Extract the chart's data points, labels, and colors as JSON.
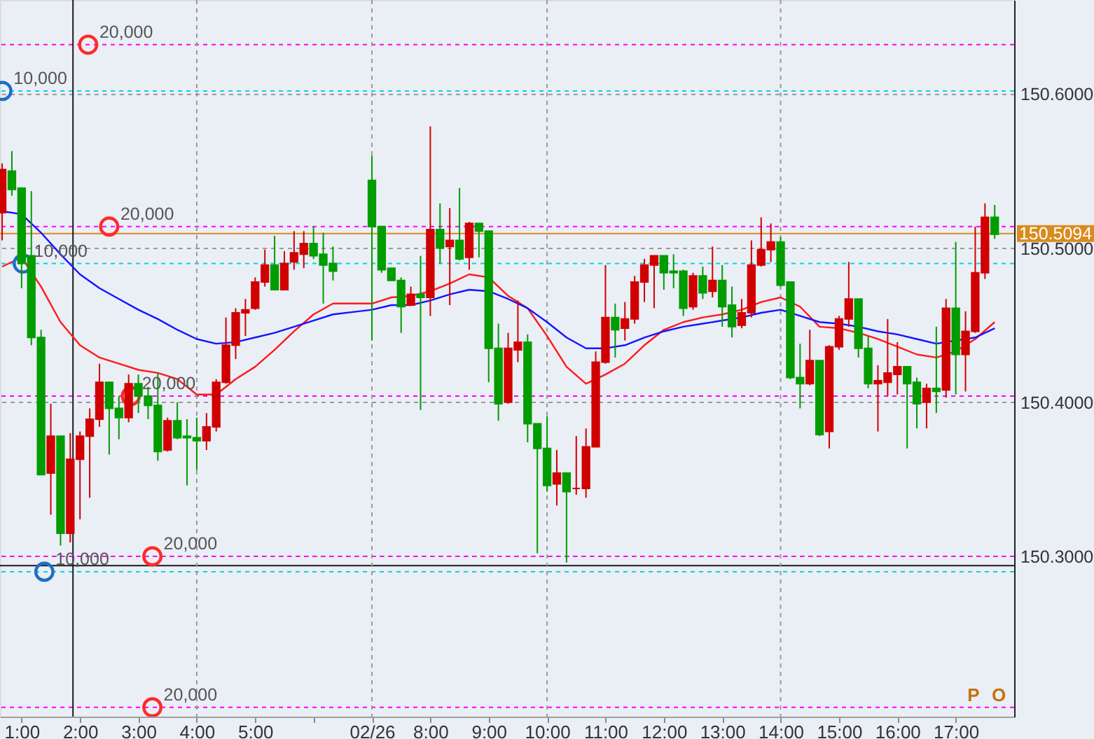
{
  "chart_data": {
    "type": "candlestick",
    "x": [
      0.6667,
      0.8333,
      1,
      1.1667,
      1.3333,
      1.5,
      1.6667,
      1.8333,
      2,
      2.1667,
      2.3333,
      2.5,
      2.6667,
      2.8333,
      3,
      3.1667,
      3.3333,
      3.5,
      3.6667,
      3.8333,
      4,
      4.1667,
      4.3333,
      4.5,
      4.6667,
      4.8333,
      5,
      5.1667,
      5.3333,
      5.5,
      5.6667,
      5.8333,
      6,
      6.1667,
      6.3333,
      7,
      7.1667,
      7.3333,
      7.5,
      7.6667,
      7.8333,
      8,
      8.1667,
      8.3333,
      8.5,
      8.6667,
      8.8333,
      9,
      9.1667,
      9.3333,
      9.5,
      9.6667,
      9.8333,
      10,
      10.1667,
      10.3333,
      10.5,
      10.6667,
      10.8333,
      11,
      11.1667,
      11.3333,
      11.5,
      11.6667,
      11.8333,
      12,
      12.1667,
      12.3333,
      12.5,
      12.6667,
      12.8333,
      13,
      13.1667,
      13.3333,
      13.5,
      13.6667,
      13.8333,
      14,
      14.1667,
      14.3333,
      14.5,
      14.6667,
      14.8333,
      15,
      15.1667,
      15.3333,
      15.5,
      15.6667,
      15.8333,
      16,
      16.1667,
      16.3333,
      16.5,
      16.6667,
      16.8333,
      17,
      17.1667,
      17.3333,
      17.5,
      17.6667
    ],
    "ohlc": [
      [
        150.523,
        150.555,
        150.505,
        150.551
      ],
      [
        150.55,
        150.563,
        150.534,
        150.538
      ],
      [
        150.539,
        150.539,
        150.474,
        150.49
      ],
      [
        150.495,
        150.537,
        150.437,
        150.442
      ],
      [
        150.442,
        150.447,
        150.353,
        150.353
      ],
      [
        150.354,
        150.399,
        150.327,
        150.378
      ],
      [
        150.378,
        150.378,
        150.307,
        150.315
      ],
      [
        150.315,
        150.38,
        150.309,
        150.363
      ],
      [
        150.363,
        150.381,
        150.324,
        150.378
      ],
      [
        150.378,
        150.396,
        150.338,
        150.389
      ],
      [
        150.389,
        150.425,
        150.384,
        150.413
      ],
      [
        150.413,
        150.413,
        150.366,
        150.396
      ],
      [
        150.396,
        150.404,
        150.376,
        150.39
      ],
      [
        150.39,
        150.418,
        150.387,
        150.412
      ],
      [
        150.412,
        150.418,
        150.393,
        150.404
      ],
      [
        150.404,
        150.41,
        150.389,
        150.398
      ],
      [
        150.398,
        150.419,
        150.362,
        150.368
      ],
      [
        150.369,
        150.39,
        150.368,
        150.388
      ],
      [
        150.388,
        150.4,
        150.376,
        150.377
      ],
      [
        150.378,
        150.389,
        150.346,
        150.377
      ],
      [
        150.377,
        150.39,
        150.356,
        150.375
      ],
      [
        150.375,
        150.393,
        150.369,
        150.384
      ],
      [
        150.384,
        150.415,
        150.381,
        150.413
      ],
      [
        150.413,
        150.455,
        150.412,
        150.437
      ],
      [
        150.437,
        150.461,
        150.428,
        150.458
      ],
      [
        150.458,
        150.467,
        150.443,
        150.46
      ],
      [
        150.461,
        150.481,
        150.46,
        150.478
      ],
      [
        150.478,
        150.499,
        150.475,
        150.489
      ],
      [
        150.489,
        150.508,
        150.473,
        150.473
      ],
      [
        150.473,
        150.498,
        150.473,
        150.49
      ],
      [
        150.491,
        150.511,
        150.486,
        150.497
      ],
      [
        150.496,
        150.511,
        150.487,
        150.503
      ],
      [
        150.503,
        150.514,
        150.493,
        150.495
      ],
      [
        150.496,
        150.51,
        150.464,
        150.489
      ],
      [
        150.49,
        150.501,
        150.479,
        150.485
      ],
      [
        150.544,
        150.56,
        150.44,
        150.514
      ],
      [
        150.514,
        150.514,
        150.484,
        150.486
      ],
      [
        150.487,
        150.487,
        150.479,
        150.479
      ],
      [
        150.479,
        150.481,
        150.445,
        150.462
      ],
      [
        150.463,
        150.475,
        150.463,
        150.47
      ],
      [
        150.47,
        150.495,
        150.395,
        150.468
      ],
      [
        150.468,
        150.579,
        150.456,
        150.512
      ],
      [
        150.512,
        150.529,
        150.49,
        150.5
      ],
      [
        150.501,
        150.526,
        150.463,
        150.505
      ],
      [
        150.505,
        150.539,
        150.492,
        150.493
      ],
      [
        150.494,
        150.517,
        150.486,
        150.516
      ],
      [
        150.516,
        150.516,
        150.494,
        150.511
      ],
      [
        150.511,
        150.511,
        150.413,
        150.435
      ],
      [
        150.435,
        150.451,
        150.388,
        150.399
      ],
      [
        150.4,
        150.445,
        150.399,
        150.435
      ],
      [
        150.434,
        150.466,
        150.426,
        150.439
      ],
      [
        150.439,
        150.444,
        150.374,
        150.386
      ],
      [
        150.386,
        150.386,
        150.302,
        150.37
      ],
      [
        150.37,
        150.391,
        150.342,
        150.346
      ],
      [
        150.347,
        150.369,
        150.333,
        150.354
      ],
      [
        150.354,
        150.354,
        150.296,
        150.342
      ],
      [
        150.344,
        150.378,
        150.34,
        150.344
      ],
      [
        150.344,
        150.383,
        150.338,
        150.371
      ],
      [
        150.371,
        150.433,
        150.371,
        150.426
      ],
      [
        150.426,
        150.489,
        150.425,
        150.455
      ],
      [
        150.455,
        150.464,
        150.429,
        150.447
      ],
      [
        150.448,
        150.465,
        150.44,
        150.454
      ],
      [
        150.454,
        150.482,
        150.451,
        150.478
      ],
      [
        150.478,
        150.493,
        150.465,
        150.489
      ],
      [
        150.489,
        150.495,
        150.461,
        150.495
      ],
      [
        150.495,
        150.495,
        150.473,
        150.484
      ],
      [
        150.485,
        150.496,
        150.474,
        150.484
      ],
      [
        150.485,
        150.486,
        150.456,
        150.461
      ],
      [
        150.462,
        150.484,
        150.46,
        150.482
      ],
      [
        150.482,
        150.488,
        150.467,
        150.471
      ],
      [
        150.472,
        150.501,
        150.468,
        150.479
      ],
      [
        150.479,
        150.489,
        150.449,
        150.462
      ],
      [
        150.463,
        150.475,
        150.442,
        150.449
      ],
      [
        150.45,
        150.467,
        150.448,
        150.458
      ],
      [
        150.458,
        150.505,
        150.455,
        150.489
      ],
      [
        150.489,
        150.52,
        150.488,
        150.499
      ],
      [
        150.499,
        150.516,
        150.491,
        150.504
      ],
      [
        150.504,
        150.507,
        150.475,
        150.476
      ],
      [
        150.478,
        150.478,
        150.415,
        150.416
      ],
      [
        150.416,
        150.438,
        150.396,
        150.412
      ],
      [
        150.412,
        150.447,
        150.411,
        150.427
      ],
      [
        150.427,
        150.427,
        150.378,
        150.379
      ],
      [
        150.381,
        150.437,
        150.37,
        150.436
      ],
      [
        150.436,
        150.456,
        150.434,
        150.454
      ],
      [
        150.454,
        150.491,
        150.449,
        150.467
      ],
      [
        150.467,
        150.467,
        150.429,
        150.435
      ],
      [
        150.435,
        150.443,
        150.409,
        150.412
      ],
      [
        150.412,
        150.424,
        150.381,
        150.414
      ],
      [
        150.413,
        150.454,
        150.404,
        150.419
      ],
      [
        150.418,
        150.439,
        150.405,
        150.423
      ],
      [
        150.423,
        150.423,
        150.37,
        150.412
      ],
      [
        150.413,
        150.416,
        150.383,
        150.399
      ],
      [
        150.4,
        150.412,
        150.383,
        150.409
      ],
      [
        150.409,
        150.449,
        150.393,
        150.407
      ],
      [
        150.408,
        150.467,
        150.403,
        150.461
      ],
      [
        150.461,
        150.504,
        150.405,
        150.431
      ],
      [
        150.431,
        150.459,
        150.407,
        150.446
      ],
      [
        150.446,
        150.514,
        150.445,
        150.484
      ],
      [
        150.484,
        150.529,
        150.48,
        150.52
      ],
      [
        150.52,
        150.528,
        150.506,
        150.509
      ]
    ],
    "colors": [
      "#d10000",
      "#009c00",
      "#009c00",
      "#009c00",
      "#009c00",
      "#d10000",
      "#009c00",
      "#d10000",
      "#d10000",
      "#d10000",
      "#d10000",
      "#009c00",
      "#009c00",
      "#d10000",
      "#009c00",
      "#009c00",
      "#009c00",
      "#d10000",
      "#009c00",
      "#009c00",
      "#009c00",
      "#d10000",
      "#d10000",
      "#d10000",
      "#d10000",
      "#d10000",
      "#d10000",
      "#d10000",
      "#009c00",
      "#d10000",
      "#d10000",
      "#d10000",
      "#009c00",
      "#009c00",
      "#009c00",
      "#009c00",
      "#009c00",
      "#009c00",
      "#009c00",
      "#d10000",
      "#009c00",
      "#d10000",
      "#009c00",
      "#d10000",
      "#009c00",
      "#d10000",
      "#009c00",
      "#009c00",
      "#009c00",
      "#d10000",
      "#d10000",
      "#009c00",
      "#009c00",
      "#009c00",
      "#d10000",
      "#009c00",
      "#d10000",
      "#d10000",
      "#d10000",
      "#d10000",
      "#009c00",
      "#d10000",
      "#d10000",
      "#d10000",
      "#d10000",
      "#009c00",
      "#009c00",
      "#009c00",
      "#d10000",
      "#009c00",
      "#d10000",
      "#009c00",
      "#009c00",
      "#d10000",
      "#d10000",
      "#d10000",
      "#d10000",
      "#009c00",
      "#009c00",
      "#009c00",
      "#d10000",
      "#009c00",
      "#d10000",
      "#d10000",
      "#d10000",
      "#009c00",
      "#009c00",
      "#d10000",
      "#d10000",
      "#d10000",
      "#009c00",
      "#009c00",
      "#d10000",
      "#009c00",
      "#d10000",
      "#009c00",
      "#d10000",
      "#d10000",
      "#d10000",
      "#009c00"
    ],
    "series": [
      {
        "type": "line",
        "color": "#ff1a1a",
        "x": [
          0.6667,
          1,
          1.3333,
          1.6667,
          2,
          2.3333,
          2.6667,
          3,
          3.3333,
          3.6667,
          4,
          4.3333,
          4.6667,
          5,
          5.3333,
          5.6667,
          6,
          6.3333,
          7,
          7.3333,
          7.6667,
          8,
          8.3333,
          8.6667,
          9,
          9.3333,
          9.6667,
          10,
          10.3333,
          10.6667,
          11,
          11.3333,
          11.6667,
          12,
          12.3333,
          12.6667,
          13,
          13.3333,
          13.6667,
          14,
          14.3333,
          14.6667,
          15,
          15.3333,
          15.6667,
          16,
          16.3333,
          16.6667,
          17,
          17.3333,
          17.6667
        ],
        "values": [
          150.488,
          150.494,
          150.475,
          150.452,
          150.437,
          150.429,
          150.425,
          150.421,
          150.419,
          150.415,
          150.405,
          150.405,
          150.415,
          150.423,
          150.434,
          150.446,
          150.457,
          150.464,
          150.464,
          150.468,
          150.469,
          150.472,
          150.477,
          150.483,
          150.481,
          150.469,
          150.461,
          150.443,
          150.423,
          150.412,
          150.418,
          150.425,
          150.437,
          150.447,
          150.452,
          150.455,
          150.457,
          150.46,
          150.465,
          150.468,
          150.462,
          150.449,
          150.448,
          150.445,
          150.441,
          150.436,
          150.431,
          150.429,
          150.433,
          150.441,
          150.452
        ]
      },
      {
        "type": "line",
        "color": "#1414ff",
        "x": [
          0.6667,
          1,
          1.3333,
          1.6667,
          2,
          2.3333,
          2.6667,
          3,
          3.3333,
          3.6667,
          4,
          4.3333,
          4.6667,
          5,
          5.3333,
          5.6667,
          6,
          6.3333,
          7,
          7.3333,
          7.6667,
          8,
          8.3333,
          8.6667,
          9,
          9.3333,
          9.6667,
          10,
          10.3333,
          10.6667,
          11,
          11.3333,
          11.6667,
          12,
          12.3333,
          12.6667,
          13,
          13.3333,
          13.6667,
          14,
          14.3333,
          14.6667,
          15,
          15.3333,
          15.6667,
          16,
          16.3333,
          16.6667,
          17,
          17.3333,
          17.6667
        ],
        "values": [
          150.524,
          150.522,
          150.51,
          150.496,
          150.483,
          150.474,
          150.467,
          150.46,
          150.454,
          150.447,
          150.441,
          150.438,
          150.439,
          150.442,
          150.445,
          150.449,
          150.453,
          150.457,
          150.46,
          150.463,
          150.463,
          150.466,
          150.47,
          150.473,
          150.472,
          150.467,
          150.461,
          150.452,
          150.442,
          150.435,
          150.435,
          150.437,
          150.442,
          150.446,
          150.449,
          150.451,
          150.453,
          150.455,
          150.458,
          150.46,
          150.456,
          150.452,
          150.451,
          150.449,
          150.446,
          150.444,
          150.441,
          150.438,
          150.44,
          150.442,
          150.448
        ]
      },
      {
        "type": "scatter",
        "color": "#ff2a2a",
        "marker": "circle",
        "x": [
          2.14,
          2.5,
          2.87,
          3.24,
          3.24
        ],
        "values": [
          150.632,
          150.514,
          150.404,
          150.3,
          150.202
        ]
      },
      {
        "type": "scatter",
        "color": "#1f6fc5",
        "marker": "circle",
        "x": [
          0.67,
          1.02,
          1.39
        ],
        "values": [
          150.602,
          150.49,
          150.29
        ]
      }
    ],
    "xlim": [
      0.63,
      18.0
    ],
    "xticks": [
      {
        "value": 1,
        "label": "1:00"
      },
      {
        "value": 2,
        "label": "2:00"
      },
      {
        "value": 3,
        "label": "3:00"
      },
      {
        "value": 4,
        "label": "4:00"
      },
      {
        "value": 5,
        "label": "5:00"
      },
      {
        "value": 6,
        "label": null
      },
      {
        "value": 7,
        "label": "02/26"
      },
      {
        "value": 8,
        "label": "8:00"
      },
      {
        "value": 9,
        "label": "9:00"
      },
      {
        "value": 10,
        "label": "10:00"
      },
      {
        "value": 11,
        "label": "11:00"
      },
      {
        "value": 12,
        "label": "12:00"
      },
      {
        "value": 13,
        "label": "13:00"
      },
      {
        "value": 14,
        "label": "14:00"
      },
      {
        "value": 15,
        "label": "15:00"
      },
      {
        "value": 16,
        "label": "16:00"
      },
      {
        "value": 17,
        "label": "17:00"
      }
    ],
    "ylim": [
      150.196,
      150.661
    ],
    "yticks": [
      {
        "value": 150.3,
        "label": "150.3000"
      },
      {
        "value": 150.4,
        "label": "150.4000"
      },
      {
        "value": 150.5,
        "label": "150.5000"
      },
      {
        "value": 150.6,
        "label": "150.6000"
      }
    ],
    "grid": "y",
    "ref_lines": [
      {
        "axis": "y",
        "value": 150.632,
        "color": "#ff00ff",
        "line_style": "dashed"
      },
      {
        "axis": "y",
        "value": 150.602,
        "color": "#00d8e0",
        "line_style": "dashed"
      },
      {
        "axis": "y",
        "value": 150.514,
        "color": "#ff00ff",
        "line_style": "dashed"
      },
      {
        "axis": "y",
        "value": 150.5094,
        "label": "150.5094",
        "color": "#d98b1e",
        "line_style": "solid"
      },
      {
        "axis": "y",
        "value": 150.49,
        "color": "#00d8e0",
        "line_style": "dashed"
      },
      {
        "axis": "y",
        "value": 150.404,
        "color": "#ff00ff",
        "line_style": "dashed"
      },
      {
        "axis": "y",
        "value": 150.3,
        "color": "#ff00ff",
        "line_style": "dashed"
      },
      {
        "axis": "y",
        "value": 150.294,
        "color": "#1a1a1a",
        "line_style": "solid"
      },
      {
        "axis": "y",
        "value": 150.29,
        "color": "#00d8e0",
        "line_style": "dashed"
      },
      {
        "axis": "y",
        "value": 150.202,
        "color": "#ff00ff",
        "line_style": "dashed"
      },
      {
        "axis": "x",
        "value": 4,
        "color": "#9a9a9a",
        "line_style": "dashed"
      },
      {
        "axis": "x",
        "value": 7,
        "color": "#9a9a9a",
        "line_style": "dashed"
      },
      {
        "axis": "x",
        "value": 10,
        "color": "#9a9a9a",
        "line_style": "dashed"
      },
      {
        "axis": "x",
        "value": 14,
        "color": "#9a9a9a",
        "line_style": "dashed"
      },
      {
        "axis": "x",
        "value": 1.88,
        "color": "#1a1a1a",
        "line_style": "solid"
      }
    ],
    "annotations": [
      {
        "text": "20,000",
        "x": 2.14,
        "y": 150.632
      },
      {
        "text": "20,000",
        "x": 2.5,
        "y": 150.514
      },
      {
        "text": "20,000",
        "x": 2.87,
        "y": 150.404
      },
      {
        "text": "20,000",
        "x": 3.24,
        "y": 150.3
      },
      {
        "text": "20,000",
        "x": 3.24,
        "y": 150.202
      },
      {
        "text": "10,000",
        "x": 0.67,
        "y": 150.602
      },
      {
        "text": "10,000",
        "x": 1.02,
        "y": 150.49
      },
      {
        "text": "10,000",
        "x": 1.39,
        "y": 150.29
      },
      "P",
      "O"
    ]
  }
}
